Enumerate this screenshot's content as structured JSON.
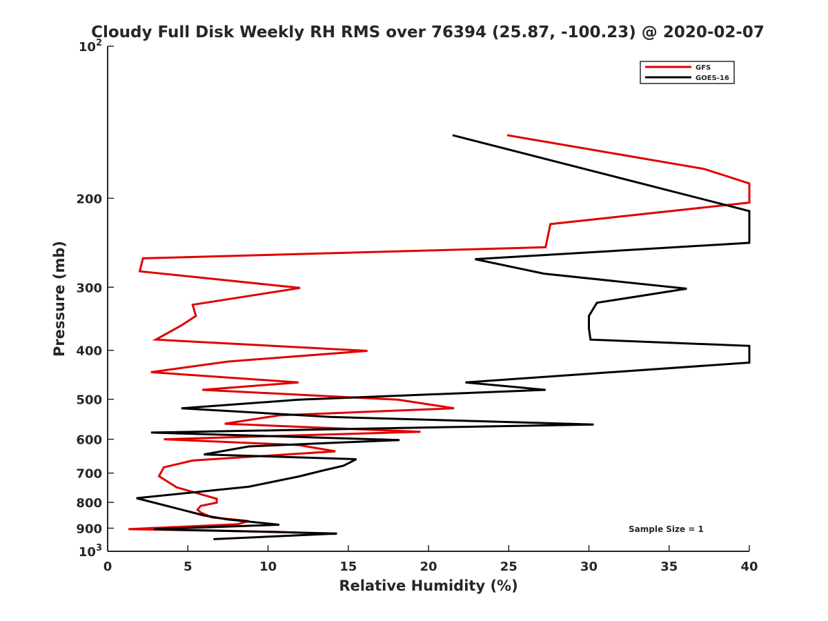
{
  "chart_data": {
    "type": "line",
    "title": "Cloudy Full Disk Weekly RH RMS over 76394 (25.87, -100.23) @ 2020-02-07",
    "xlabel": "Relative Humidity (%)",
    "ylabel": "Pressure (mb)",
    "xlim": [
      0,
      40
    ],
    "ylim": [
      100,
      1000
    ],
    "yscale": "log",
    "y_reversed": true,
    "grid": false,
    "legend_position": "top-right",
    "x_ticks": [
      "0",
      "5",
      "10",
      "15",
      "20",
      "25",
      "30",
      "35",
      "40"
    ],
    "y_ticks": [
      {
        "value": 100,
        "base": "10",
        "exp": "2"
      },
      {
        "value": 200,
        "label": "200"
      },
      {
        "value": 300,
        "label": "300"
      },
      {
        "value": 400,
        "label": "400"
      },
      {
        "value": 500,
        "label": "500"
      },
      {
        "value": 600,
        "label": "600"
      },
      {
        "value": 700,
        "label": "700"
      },
      {
        "value": 800,
        "label": "800"
      },
      {
        "value": 900,
        "label": "900"
      },
      {
        "value": 1000,
        "base": "10",
        "exp": "3"
      }
    ],
    "annotation": "Sample Size = 1",
    "series": [
      {
        "name": "GFS",
        "color": "#e00000",
        "points": [
          [
            24.9,
            150
          ],
          [
            37.2,
            175
          ],
          [
            40,
            187
          ],
          [
            40,
            204
          ],
          [
            27.6,
            225
          ],
          [
            27.3,
            250
          ],
          [
            2.2,
            263
          ],
          [
            2.0,
            279
          ],
          [
            12.0,
            301
          ],
          [
            5.3,
            325
          ],
          [
            5.5,
            342
          ],
          [
            4.6,
            357
          ],
          [
            3.0,
            381
          ],
          [
            16.2,
            401
          ],
          [
            7.5,
            421
          ],
          [
            2.7,
            442
          ],
          [
            11.9,
            463
          ],
          [
            5.9,
            479
          ],
          [
            18.1,
            501
          ],
          [
            21.6,
            521
          ],
          [
            10.7,
            538
          ],
          [
            7.3,
            559
          ],
          [
            19.5,
            580
          ],
          [
            3.5,
            600
          ],
          [
            11.9,
            616
          ],
          [
            14.2,
            634
          ],
          [
            5.3,
            661
          ],
          [
            3.5,
            682
          ],
          [
            3.2,
            710
          ],
          [
            4.3,
            747
          ],
          [
            6.8,
            787
          ],
          [
            6.8,
            801
          ],
          [
            5.8,
            813
          ],
          [
            5.6,
            827
          ],
          [
            5.8,
            838
          ],
          [
            6.5,
            857
          ],
          [
            8.8,
            871
          ],
          [
            8.1,
            884
          ],
          [
            1.3,
            904
          ],
          [
            10.5,
            915
          ],
          [
            14.2,
            924
          ]
        ]
      },
      {
        "name": "GOES-16",
        "color": "#000000",
        "points": [
          [
            21.5,
            150
          ],
          [
            40,
            212
          ],
          [
            40,
            245
          ],
          [
            22.9,
            264
          ],
          [
            27.2,
            282
          ],
          [
            36.1,
            302
          ],
          [
            30.5,
            322
          ],
          [
            30.0,
            342
          ],
          [
            30.0,
            362
          ],
          [
            30.1,
            381
          ],
          [
            40,
            392
          ],
          [
            40,
            423
          ],
          [
            22.3,
            463
          ],
          [
            27.3,
            479
          ],
          [
            11.9,
            501
          ],
          [
            4.6,
            521
          ],
          [
            13.9,
            542
          ],
          [
            30.3,
            561
          ],
          [
            2.7,
            582
          ],
          [
            18.2,
            602
          ],
          [
            8.8,
            620
          ],
          [
            6.0,
            643
          ],
          [
            15.5,
            657
          ],
          [
            14.7,
            677
          ],
          [
            13.4,
            692
          ],
          [
            11.9,
            711
          ],
          [
            8.8,
            745
          ],
          [
            1.8,
            785
          ],
          [
            2.9,
            801
          ],
          [
            4.6,
            827
          ],
          [
            6.0,
            849
          ],
          [
            7.5,
            865
          ],
          [
            10.7,
            886
          ],
          [
            2.9,
            904
          ],
          [
            14.3,
            922
          ],
          [
            6.6,
            946
          ]
        ]
      }
    ]
  }
}
